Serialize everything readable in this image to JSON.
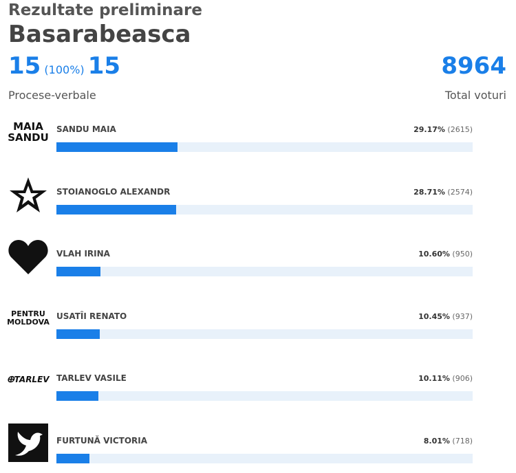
{
  "header": {
    "kicker": "Rezultate preliminare",
    "title": "Basarabeasca",
    "counted": 15,
    "counted_pct": "(100%)",
    "total_pv": 15,
    "total_votes": 8964,
    "pv_caption": "Procese-verbale",
    "votes_caption": "Total voturi"
  },
  "candidates": {
    "xlim": [
      0,
      100
    ],
    "color": "#1a7fe8",
    "track": "#e8f1fa",
    "items": [
      {
        "name": "SANDU MAIA",
        "value": 29.17,
        "value_label": "29.17%",
        "votes": 2615,
        "votes_label": "(2615)",
        "logo": [
          "MAIA",
          "SANDU"
        ]
      },
      {
        "name": "STOIANOGLO ALEXANDR",
        "value": 28.71,
        "value_label": "28.71%",
        "votes": 2574,
        "votes_label": "(2574)"
      },
      {
        "name": "VLAH IRINA",
        "value": 10.6,
        "value_label": "10.60%",
        "votes": 950,
        "votes_label": "(950)"
      },
      {
        "name": "USATÎI RENATO",
        "value": 10.45,
        "value_label": "10.45%",
        "votes": 937,
        "votes_label": "(937)",
        "logo": [
          "PENTRU",
          "MOLDOVA"
        ]
      },
      {
        "name": "TARLEV VASILE",
        "value": 10.11,
        "value_label": "10.11%",
        "votes": 906,
        "votes_label": "(906)",
        "logo": [
          "ⴲTARLEV"
        ]
      },
      {
        "name": "FURTUNĂ VICTORIA",
        "value": 8.01,
        "value_label": "8.01%",
        "votes": 718,
        "votes_label": "(718)"
      }
    ]
  }
}
